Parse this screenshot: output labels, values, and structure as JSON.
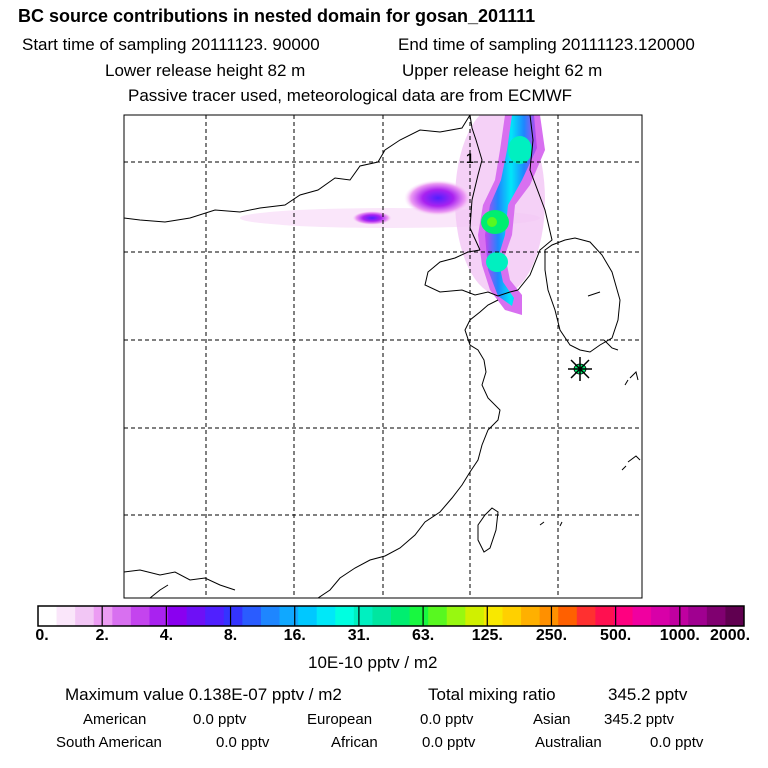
{
  "header": {
    "title": "BC  source contributions in nested domain for gosan_201111",
    "start_sampling": "Start time of sampling 20111123. 90000",
    "end_sampling": "End time of sampling 20111123.120000",
    "lower_release": "Lower release height   82 m",
    "upper_release": "Upper release height   62 m",
    "tracer_note": "Passive tracer used, meteorological data are from ECMWF"
  },
  "map": {
    "marker_label": "1",
    "station_marker": "asterisk-icon"
  },
  "colorbar": {
    "ticks": [
      "0.",
      "2.",
      "4.",
      "8.",
      "16.",
      "31.",
      "63.",
      "125.",
      "250.",
      "500.",
      "1000.",
      "2000."
    ],
    "colors": [
      "#ffffff",
      "#fae6fa",
      "#f2c6f5",
      "#ec9cf3",
      "#d870f0",
      "#c444ee",
      "#a922f0",
      "#8a00f0",
      "#6e10f6",
      "#5020ff",
      "#3434ff",
      "#2a5cff",
      "#1e86ff",
      "#10a8ff",
      "#00c8ff",
      "#00e8f8",
      "#00ffe0",
      "#00f0c0",
      "#00e6a0",
      "#00ee70",
      "#18f840",
      "#58f820",
      "#98f810",
      "#d0f000",
      "#f8e800",
      "#ffd000",
      "#ffb000",
      "#ff9000",
      "#ff6000",
      "#ff3030",
      "#ff1050",
      "#ff0080",
      "#f000a0",
      "#d800a8",
      "#c000a0",
      "#a00090",
      "#800070",
      "#600050"
    ],
    "unit": "10E-10 pptv / m2"
  },
  "summary": {
    "max_value": "Maximum value  0.138E-07 pptv / m2",
    "total_label": "Total mixing ratio",
    "total_value": "345.2 pptv",
    "american": "American",
    "american_value": "0.0 pptv",
    "european": "European",
    "european_value": "0.0 pptv",
    "asian": "Asian",
    "asian_value": "345.2 pptv",
    "south_american": "South American",
    "south_american_value": "0.0 pptv",
    "african": "African",
    "african_value": "0.0 pptv",
    "australian": "Australian",
    "australian_value": "0.0 pptv"
  }
}
